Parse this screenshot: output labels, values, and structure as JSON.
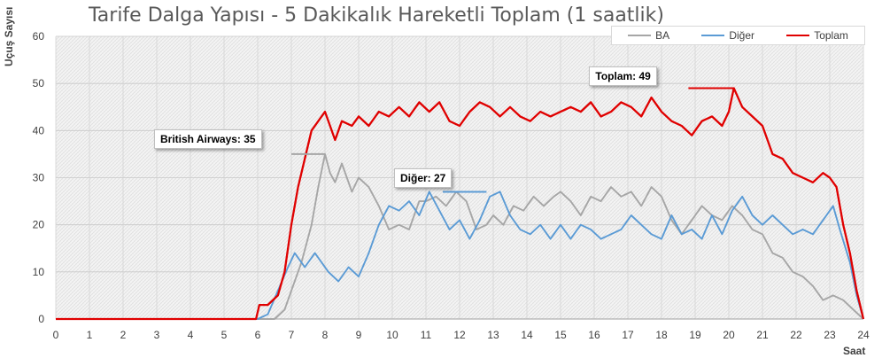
{
  "chart_data": {
    "type": "line",
    "title": "Tarife Dalga Yapısı - 5 Dakikalık Hareketli Toplam (1 saatlik)",
    "xlabel": "Saat",
    "ylabel": "Uçuş Sayısı",
    "xlim": [
      0,
      24
    ],
    "ylim": [
      0,
      60
    ],
    "x_ticks": [
      "0",
      "1",
      "2",
      "3",
      "4",
      "5",
      "6",
      "7",
      "8",
      "9",
      "10",
      "11",
      "12",
      "13",
      "14",
      "15",
      "16",
      "17",
      "18",
      "19",
      "20",
      "21",
      "22",
      "23",
      "24"
    ],
    "y_ticks": [
      "0",
      "10",
      "20",
      "30",
      "40",
      "50",
      "60"
    ],
    "grid": true,
    "legend_position": "top-right",
    "series": [
      {
        "name": "BA",
        "color": "#a6a6a6",
        "points": [
          [
            0,
            0
          ],
          [
            6.0,
            0
          ],
          [
            6.5,
            0
          ],
          [
            6.8,
            2
          ],
          [
            7.0,
            6
          ],
          [
            7.3,
            12
          ],
          [
            7.6,
            20
          ],
          [
            7.8,
            28
          ],
          [
            8.0,
            35
          ],
          [
            8.15,
            31
          ],
          [
            8.3,
            29
          ],
          [
            8.5,
            33
          ],
          [
            8.8,
            27
          ],
          [
            9.0,
            30
          ],
          [
            9.3,
            28
          ],
          [
            9.6,
            24
          ],
          [
            9.9,
            19
          ],
          [
            10.2,
            20
          ],
          [
            10.5,
            19
          ],
          [
            10.8,
            25
          ],
          [
            11.0,
            25
          ],
          [
            11.3,
            26
          ],
          [
            11.6,
            24
          ],
          [
            11.9,
            27
          ],
          [
            12.2,
            25
          ],
          [
            12.5,
            19
          ],
          [
            12.8,
            20
          ],
          [
            13.0,
            22
          ],
          [
            13.3,
            20
          ],
          [
            13.6,
            24
          ],
          [
            13.9,
            23
          ],
          [
            14.2,
            26
          ],
          [
            14.5,
            24
          ],
          [
            14.8,
            26
          ],
          [
            15.0,
            27
          ],
          [
            15.3,
            25
          ],
          [
            15.6,
            22
          ],
          [
            15.9,
            26
          ],
          [
            16.2,
            25
          ],
          [
            16.5,
            28
          ],
          [
            16.8,
            26
          ],
          [
            17.1,
            27
          ],
          [
            17.4,
            24
          ],
          [
            17.7,
            28
          ],
          [
            18.0,
            26
          ],
          [
            18.3,
            21
          ],
          [
            18.6,
            18
          ],
          [
            18.9,
            21
          ],
          [
            19.2,
            24
          ],
          [
            19.5,
            22
          ],
          [
            19.8,
            21
          ],
          [
            20.1,
            24
          ],
          [
            20.4,
            22
          ],
          [
            20.7,
            19
          ],
          [
            21.0,
            18
          ],
          [
            21.3,
            14
          ],
          [
            21.6,
            13
          ],
          [
            21.9,
            10
          ],
          [
            22.2,
            9
          ],
          [
            22.5,
            7
          ],
          [
            22.8,
            4
          ],
          [
            23.1,
            5
          ],
          [
            23.4,
            4
          ],
          [
            23.7,
            2
          ],
          [
            24.0,
            0
          ]
        ]
      },
      {
        "name": "Diğer",
        "color": "#5b9bd5",
        "points": [
          [
            0,
            0
          ],
          [
            6.0,
            0
          ],
          [
            6.3,
            1
          ],
          [
            6.6,
            6
          ],
          [
            6.9,
            11
          ],
          [
            7.1,
            14
          ],
          [
            7.4,
            11
          ],
          [
            7.7,
            14
          ],
          [
            7.9,
            12
          ],
          [
            8.1,
            10
          ],
          [
            8.4,
            8
          ],
          [
            8.7,
            11
          ],
          [
            9.0,
            9
          ],
          [
            9.3,
            14
          ],
          [
            9.6,
            20
          ],
          [
            9.9,
            24
          ],
          [
            10.2,
            23
          ],
          [
            10.5,
            25
          ],
          [
            10.8,
            22
          ],
          [
            11.1,
            27
          ],
          [
            11.4,
            23
          ],
          [
            11.7,
            19
          ],
          [
            12.0,
            21
          ],
          [
            12.3,
            17
          ],
          [
            12.6,
            21
          ],
          [
            12.9,
            26
          ],
          [
            13.2,
            27
          ],
          [
            13.5,
            22
          ],
          [
            13.8,
            19
          ],
          [
            14.1,
            18
          ],
          [
            14.4,
            20
          ],
          [
            14.7,
            17
          ],
          [
            15.0,
            20
          ],
          [
            15.3,
            17
          ],
          [
            15.6,
            20
          ],
          [
            15.9,
            19
          ],
          [
            16.2,
            17
          ],
          [
            16.5,
            18
          ],
          [
            16.8,
            19
          ],
          [
            17.1,
            22
          ],
          [
            17.4,
            20
          ],
          [
            17.7,
            18
          ],
          [
            18.0,
            17
          ],
          [
            18.3,
            22
          ],
          [
            18.6,
            18
          ],
          [
            18.9,
            19
          ],
          [
            19.2,
            17
          ],
          [
            19.5,
            22
          ],
          [
            19.8,
            18
          ],
          [
            20.1,
            23
          ],
          [
            20.4,
            26
          ],
          [
            20.7,
            22
          ],
          [
            21.0,
            20
          ],
          [
            21.3,
            22
          ],
          [
            21.6,
            20
          ],
          [
            21.9,
            18
          ],
          [
            22.2,
            19
          ],
          [
            22.5,
            18
          ],
          [
            22.8,
            21
          ],
          [
            23.1,
            24
          ],
          [
            23.3,
            19
          ],
          [
            23.6,
            12
          ],
          [
            23.8,
            5
          ],
          [
            24.0,
            0
          ]
        ]
      },
      {
        "name": "Toplam",
        "color": "#e00000",
        "points": [
          [
            0,
            0
          ],
          [
            5.95,
            0
          ],
          [
            6.05,
            3
          ],
          [
            6.3,
            3
          ],
          [
            6.6,
            5
          ],
          [
            6.8,
            10
          ],
          [
            7.0,
            20
          ],
          [
            7.2,
            28
          ],
          [
            7.4,
            34
          ],
          [
            7.6,
            40
          ],
          [
            7.8,
            42
          ],
          [
            8.0,
            44
          ],
          [
            8.15,
            41
          ],
          [
            8.3,
            38
          ],
          [
            8.5,
            42
          ],
          [
            8.8,
            41
          ],
          [
            9.0,
            43
          ],
          [
            9.3,
            41
          ],
          [
            9.6,
            44
          ],
          [
            9.9,
            43
          ],
          [
            10.2,
            45
          ],
          [
            10.5,
            43
          ],
          [
            10.8,
            46
          ],
          [
            11.1,
            44
          ],
          [
            11.4,
            46
          ],
          [
            11.7,
            42
          ],
          [
            12.0,
            41
          ],
          [
            12.3,
            44
          ],
          [
            12.6,
            46
          ],
          [
            12.9,
            45
          ],
          [
            13.2,
            43
          ],
          [
            13.5,
            45
          ],
          [
            13.8,
            43
          ],
          [
            14.1,
            42
          ],
          [
            14.4,
            44
          ],
          [
            14.7,
            43
          ],
          [
            15.0,
            44
          ],
          [
            15.3,
            45
          ],
          [
            15.6,
            44
          ],
          [
            15.9,
            46
          ],
          [
            16.2,
            43
          ],
          [
            16.5,
            44
          ],
          [
            16.8,
            46
          ],
          [
            17.1,
            45
          ],
          [
            17.4,
            43
          ],
          [
            17.7,
            47
          ],
          [
            18.0,
            44
          ],
          [
            18.3,
            42
          ],
          [
            18.6,
            41
          ],
          [
            18.9,
            39
          ],
          [
            19.2,
            42
          ],
          [
            19.5,
            43
          ],
          [
            19.8,
            41
          ],
          [
            20.0,
            44
          ],
          [
            20.15,
            49
          ],
          [
            20.4,
            45
          ],
          [
            20.7,
            43
          ],
          [
            21.0,
            41
          ],
          [
            21.3,
            35
          ],
          [
            21.6,
            34
          ],
          [
            21.9,
            31
          ],
          [
            22.2,
            30
          ],
          [
            22.5,
            29
          ],
          [
            22.8,
            31
          ],
          [
            23.0,
            30
          ],
          [
            23.2,
            28
          ],
          [
            23.4,
            20
          ],
          [
            23.6,
            14
          ],
          [
            23.8,
            6
          ],
          [
            24.0,
            0
          ]
        ]
      }
    ],
    "annotations": [
      {
        "label": "British Airways: 35",
        "series": "BA",
        "x_start": 7.0,
        "x_end": 8.0,
        "y": 35
      },
      {
        "label": "Diğer: 27",
        "series": "Diğer",
        "x_start": 11.5,
        "x_end": 12.8,
        "y": 27
      },
      {
        "label": "Toplam: 49",
        "series": "Toplam",
        "x_start": 18.8,
        "x_end": 20.15,
        "y": 49
      }
    ]
  }
}
